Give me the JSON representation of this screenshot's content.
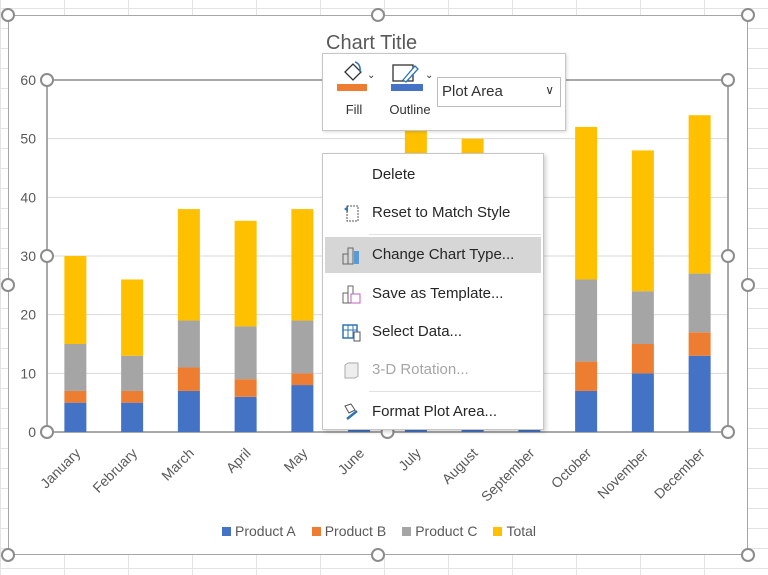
{
  "chart_data": {
    "type": "bar",
    "stacked": true,
    "title": "Chart Title",
    "categories": [
      "January",
      "February",
      "March",
      "April",
      "May",
      "June",
      "July",
      "August",
      "September",
      "October",
      "November",
      "December"
    ],
    "series": [
      {
        "name": "Product A",
        "color": "#4472c4",
        "values": [
          5,
          5,
          7,
          6,
          8,
          6,
          8,
          8,
          7,
          7,
          10,
          13
        ]
      },
      {
        "name": "Product B",
        "color": "#ed7d31",
        "values": [
          2,
          2,
          4,
          3,
          2,
          3,
          4,
          3,
          3,
          5,
          5,
          4
        ]
      },
      {
        "name": "Product C",
        "color": "#a5a5a5",
        "values": [
          8,
          6,
          8,
          9,
          9,
          8,
          14,
          14,
          10,
          14,
          9,
          10
        ]
      },
      {
        "name": "Total",
        "color": "#ffc000",
        "values": [
          15,
          13,
          19,
          18,
          19,
          17,
          26,
          25,
          20,
          26,
          24,
          27
        ]
      }
    ],
    "ylim": [
      0,
      60
    ],
    "yticks": [
      0,
      10,
      20,
      30,
      40,
      50,
      60
    ],
    "grid": true,
    "legend": "bottom"
  },
  "toolbar": {
    "fill_label": "Fill",
    "fill_color": "#ed7d31",
    "outline_label": "Outline",
    "outline_color": "#4472c4",
    "element_select": "Plot Area"
  },
  "menu": {
    "items": [
      {
        "label": "Delete",
        "icon": ""
      },
      {
        "label": "Reset to Match Style",
        "icon": "reset-style-icon"
      },
      {
        "label": "Change Chart Type...",
        "icon": "chart-type-icon",
        "highlighted": true
      },
      {
        "label": "Save as Template...",
        "icon": "save-template-icon"
      },
      {
        "label": "Select Data...",
        "icon": "select-data-icon"
      },
      {
        "label": "3-D Rotation...",
        "icon": "3d-rotation-icon",
        "disabled": true
      },
      {
        "label": "Format Plot Area...",
        "icon": "format-plot-area-icon"
      }
    ]
  }
}
